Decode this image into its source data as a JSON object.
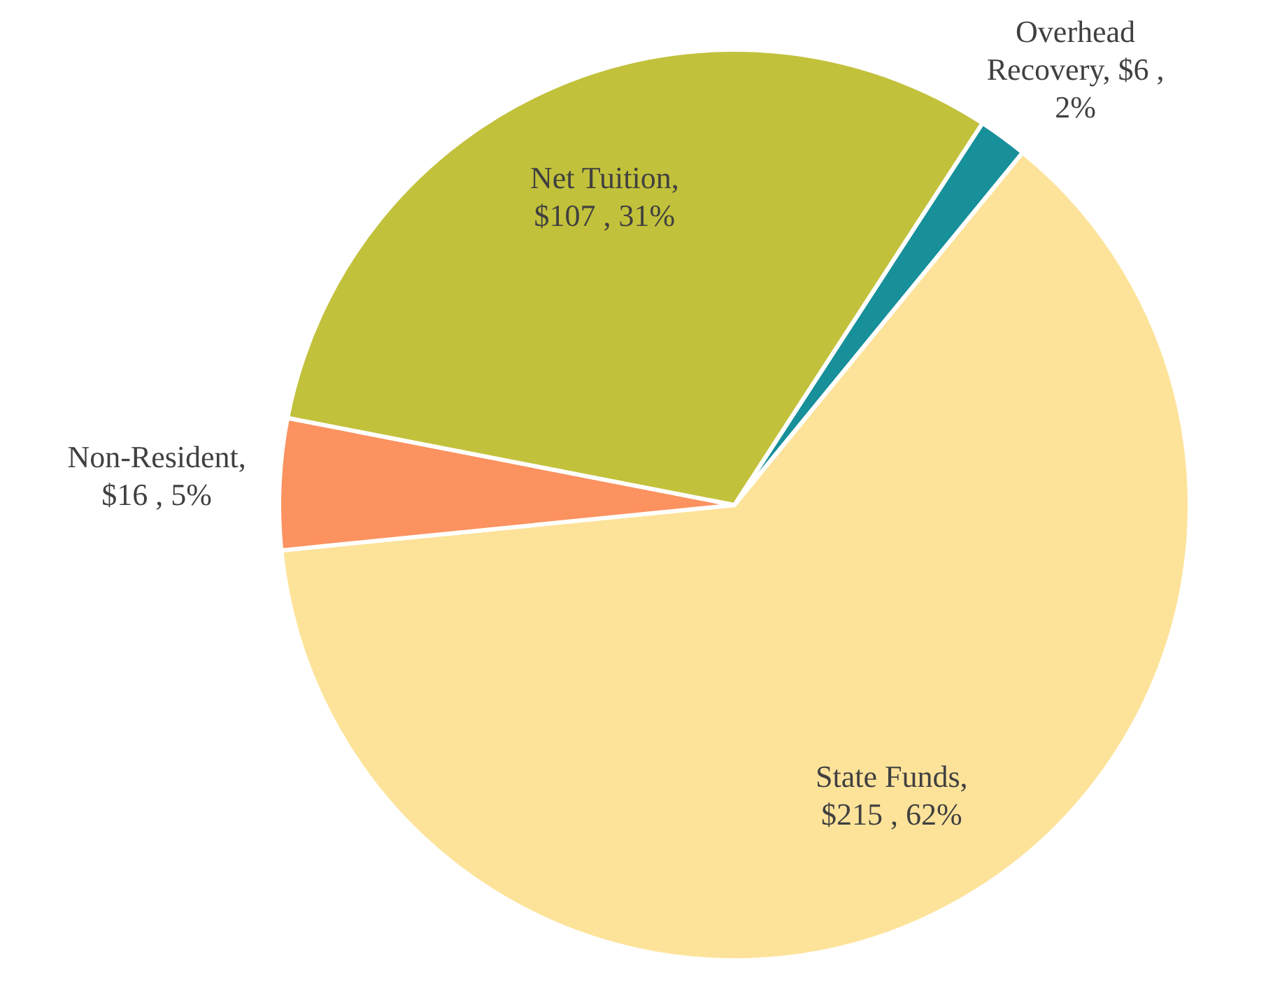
{
  "chart_data": {
    "type": "pie",
    "categories": [
      "Overhead Recovery",
      "State Funds",
      "Non-Resident",
      "Net Tuition"
    ],
    "values": [
      6,
      215,
      16,
      107
    ],
    "colors": [
      "#17909a",
      "#fde39a",
      "#fb9260",
      "#c2c13b"
    ],
    "value_labels": [
      ", $6 , 2%",
      ", $215 , 62%",
      ", $16 , 5%",
      ", $107 , 31%"
    ],
    "legend": false
  }
}
